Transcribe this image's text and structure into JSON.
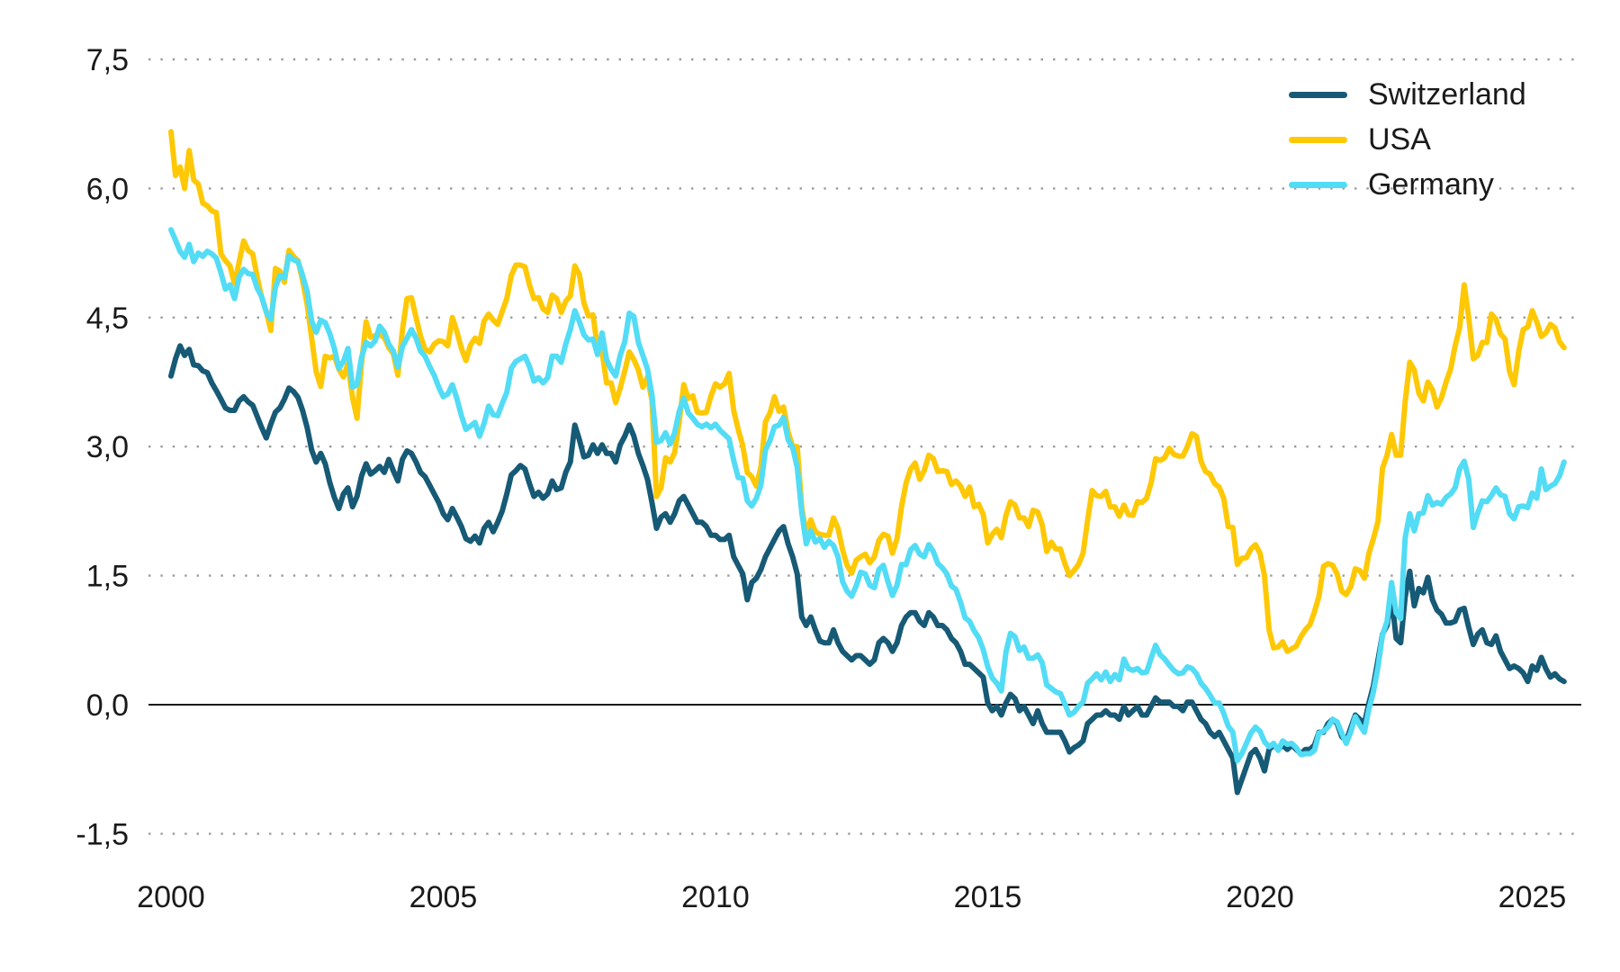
{
  "chart_data": {
    "type": "line",
    "title": "",
    "xlabel": "",
    "ylabel": "",
    "x_start_year": 2000,
    "points_per_year": 12,
    "xlim_years": [
      2000,
      2025.6
    ],
    "ylim": [
      -1.5,
      7.5
    ],
    "grid": "dotted-horizontal",
    "zero_line": true,
    "legend_position": "top-right",
    "x_ticks": [
      "2000",
      "2005",
      "2010",
      "2015",
      "2020",
      "2025"
    ],
    "x_tick_years": [
      2000,
      2005,
      2010,
      2015,
      2020,
      2025
    ],
    "y_ticks": [
      {
        "value": 7.5,
        "label": "7,5"
      },
      {
        "value": 6.0,
        "label": "6,0"
      },
      {
        "value": 4.5,
        "label": "4,5"
      },
      {
        "value": 3.0,
        "label": "3,0"
      },
      {
        "value": 1.5,
        "label": "1,5"
      },
      {
        "value": 0.0,
        "label": "0,0"
      },
      {
        "value": -1.5,
        "label": "-1,5"
      }
    ],
    "colors": {
      "switzerland": "#165A76",
      "usa": "#FFC805",
      "germany": "#52DCF5",
      "grid": "#9a9a9a",
      "zero_line": "#1a1a1a",
      "text": "#1a1a1a"
    },
    "series": [
      {
        "name": "Switzerland",
        "color": "#165A76",
        "values": [
          3.82,
          4.02,
          4.17,
          4.06,
          4.13,
          3.95,
          3.94,
          3.88,
          3.86,
          3.74,
          3.65,
          3.55,
          3.45,
          3.42,
          3.42,
          3.53,
          3.58,
          3.52,
          3.48,
          3.35,
          3.22,
          3.1,
          3.26,
          3.4,
          3.45,
          3.55,
          3.68,
          3.64,
          3.57,
          3.42,
          3.22,
          2.96,
          2.82,
          2.92,
          2.8,
          2.58,
          2.41,
          2.28,
          2.45,
          2.52,
          2.3,
          2.42,
          2.66,
          2.8,
          2.68,
          2.72,
          2.77,
          2.7,
          2.85,
          2.72,
          2.6,
          2.85,
          2.95,
          2.92,
          2.82,
          2.7,
          2.65,
          2.55,
          2.45,
          2.35,
          2.22,
          2.15,
          2.28,
          2.18,
          2.07,
          1.93,
          1.9,
          1.96,
          1.88,
          2.05,
          2.12,
          2.01,
          2.12,
          2.25,
          2.45,
          2.67,
          2.72,
          2.78,
          2.74,
          2.57,
          2.42,
          2.47,
          2.4,
          2.45,
          2.6,
          2.5,
          2.52,
          2.7,
          2.82,
          3.25,
          3.08,
          2.88,
          2.9,
          3.02,
          2.92,
          3.02,
          2.92,
          2.92,
          2.82,
          3.02,
          3.12,
          3.25,
          3.12,
          2.92,
          2.78,
          2.62,
          2.35,
          2.05,
          2.18,
          2.22,
          2.12,
          2.22,
          2.37,
          2.42,
          2.32,
          2.22,
          2.12,
          2.12,
          2.07,
          1.97,
          1.97,
          1.92,
          1.92,
          1.97,
          1.72,
          1.62,
          1.52,
          1.22,
          1.42,
          1.47,
          1.57,
          1.72,
          1.82,
          1.92,
          2.02,
          2.07,
          1.87,
          1.72,
          1.52,
          1.02,
          0.92,
          1.02,
          0.87,
          0.74,
          0.72,
          0.72,
          0.87,
          0.72,
          0.62,
          0.57,
          0.52,
          0.57,
          0.57,
          0.52,
          0.47,
          0.52,
          0.72,
          0.77,
          0.72,
          0.62,
          0.72,
          0.92,
          1.02,
          1.07,
          1.07,
          0.97,
          0.92,
          1.07,
          1.02,
          0.92,
          0.92,
          0.87,
          0.77,
          0.72,
          0.62,
          0.47,
          0.47,
          0.42,
          0.37,
          0.32,
          0.02,
          -0.07,
          -0.02,
          -0.12,
          0.02,
          0.12,
          0.07,
          -0.07,
          -0.02,
          -0.12,
          -0.22,
          -0.07,
          -0.22,
          -0.32,
          -0.32,
          -0.32,
          -0.32,
          -0.42,
          -0.55,
          -0.5,
          -0.47,
          -0.42,
          -0.22,
          -0.17,
          -0.12,
          -0.12,
          -0.07,
          -0.12,
          -0.12,
          -0.17,
          -0.02,
          -0.12,
          -0.07,
          -0.02,
          -0.12,
          -0.12,
          -0.02,
          0.08,
          0.03,
          0.03,
          0.03,
          -0.02,
          -0.02,
          -0.07,
          0.03,
          0.03,
          -0.07,
          -0.17,
          -0.22,
          -0.32,
          -0.37,
          -0.32,
          -0.42,
          -0.52,
          -0.62,
          -1.02,
          -0.87,
          -0.72,
          -0.57,
          -0.52,
          -0.62,
          -0.77,
          -0.52,
          -0.47,
          -0.52,
          -0.47,
          -0.52,
          -0.47,
          -0.52,
          -0.57,
          -0.52,
          -0.52,
          -0.47,
          -0.32,
          -0.32,
          -0.22,
          -0.17,
          -0.22,
          -0.37,
          -0.42,
          -0.27,
          -0.12,
          -0.17,
          -0.22,
          0.02,
          0.22,
          0.52,
          0.82,
          0.92,
          1.25,
          0.77,
          0.72,
          1.25,
          1.55,
          1.15,
          1.35,
          1.3,
          1.48,
          1.22,
          1.1,
          1.05,
          0.95,
          0.95,
          0.97,
          1.1,
          1.12,
          0.9,
          0.7,
          0.82,
          0.87,
          0.72,
          0.7,
          0.8,
          0.62,
          0.52,
          0.42,
          0.45,
          0.42,
          0.37,
          0.27,
          0.45,
          0.4,
          0.55,
          0.42,
          0.32,
          0.36,
          0.3,
          0.27
        ]
      },
      {
        "name": "USA",
        "color": "#FFC805",
        "values": [
          6.66,
          6.15,
          6.25,
          6.0,
          6.44,
          6.1,
          6.05,
          5.83,
          5.8,
          5.74,
          5.72,
          5.24,
          5.16,
          5.1,
          4.89,
          5.14,
          5.39,
          5.28,
          5.24,
          4.97,
          4.73,
          4.57,
          4.35,
          5.07,
          5.04,
          4.91,
          5.28,
          5.21,
          5.16,
          4.93,
          4.65,
          4.26,
          3.87,
          3.7,
          4.05,
          4.03,
          4.05,
          3.9,
          3.81,
          3.96,
          3.57,
          3.33,
          3.98,
          4.45,
          4.27,
          4.29,
          4.3,
          4.27,
          4.15,
          4.08,
          3.83,
          4.35,
          4.72,
          4.73,
          4.5,
          4.28,
          4.13,
          4.1,
          4.19,
          4.23,
          4.22,
          4.17,
          4.5,
          4.34,
          4.14,
          4.0,
          4.18,
          4.26,
          4.2,
          4.46,
          4.54,
          4.47,
          4.42,
          4.57,
          4.72,
          4.99,
          5.11,
          5.11,
          5.09,
          4.88,
          4.72,
          4.73,
          4.6,
          4.56,
          4.76,
          4.72,
          4.56,
          4.69,
          4.75,
          5.1,
          5.0,
          4.67,
          4.52,
          4.53,
          4.15,
          4.1,
          3.74,
          3.74,
          3.51,
          3.68,
          3.88,
          4.1,
          4.01,
          3.89,
          3.69,
          3.81,
          3.53,
          2.42,
          2.52,
          2.87,
          2.82,
          2.93,
          3.29,
          3.72,
          3.56,
          3.59,
          3.4,
          3.39,
          3.4,
          3.59,
          3.73,
          3.69,
          3.73,
          3.85,
          3.42,
          3.2,
          3.01,
          2.7,
          2.65,
          2.54,
          2.76,
          3.29,
          3.39,
          3.58,
          3.41,
          3.46,
          3.17,
          3.0,
          3.0,
          2.3,
          1.98,
          2.15,
          2.01,
          1.98,
          1.97,
          1.97,
          2.17,
          2.05,
          1.8,
          1.62,
          1.53,
          1.68,
          1.72,
          1.75,
          1.65,
          1.72,
          1.91,
          1.98,
          1.96,
          1.76,
          1.93,
          2.3,
          2.58,
          2.74,
          2.81,
          2.62,
          2.72,
          2.9,
          2.86,
          2.71,
          2.72,
          2.71,
          2.56,
          2.6,
          2.54,
          2.42,
          2.53,
          2.3,
          2.33,
          2.21,
          1.88,
          1.98,
          2.04,
          1.94,
          2.2,
          2.36,
          2.32,
          2.17,
          2.17,
          2.07,
          2.26,
          2.24,
          2.09,
          1.78,
          1.89,
          1.81,
          1.81,
          1.64,
          1.5,
          1.56,
          1.63,
          1.76,
          2.14,
          2.49,
          2.43,
          2.42,
          2.48,
          2.3,
          2.3,
          2.19,
          2.32,
          2.21,
          2.2,
          2.36,
          2.35,
          2.4,
          2.58,
          2.86,
          2.84,
          2.87,
          2.98,
          2.91,
          2.89,
          2.89,
          3.0,
          3.15,
          3.12,
          2.83,
          2.71,
          2.68,
          2.57,
          2.53,
          2.4,
          2.07,
          2.06,
          1.63,
          1.7,
          1.71,
          1.81,
          1.86,
          1.76,
          1.5,
          0.87,
          0.66,
          0.67,
          0.73,
          0.62,
          0.65,
          0.68,
          0.79,
          0.87,
          0.93,
          1.08,
          1.26,
          1.61,
          1.64,
          1.62,
          1.52,
          1.32,
          1.28,
          1.37,
          1.58,
          1.56,
          1.47,
          1.76,
          1.93,
          2.13,
          2.75,
          2.9,
          3.14,
          2.9,
          2.9,
          3.52,
          3.98,
          3.89,
          3.62,
          3.53,
          3.75,
          3.66,
          3.46,
          3.57,
          3.75,
          3.9,
          4.17,
          4.38,
          4.88,
          4.5,
          4.02,
          4.06,
          4.21,
          4.21,
          4.54,
          4.48,
          4.31,
          4.25,
          3.87,
          3.72,
          4.1,
          4.36,
          4.39,
          4.58,
          4.45,
          4.28,
          4.32,
          4.42,
          4.38,
          4.22,
          4.15
        ]
      },
      {
        "name": "Germany",
        "color": "#52DCF5",
        "values": [
          5.52,
          5.4,
          5.27,
          5.2,
          5.35,
          5.15,
          5.25,
          5.21,
          5.27,
          5.24,
          5.19,
          5.02,
          4.83,
          4.88,
          4.72,
          4.97,
          5.06,
          5.01,
          5.0,
          4.84,
          4.74,
          4.56,
          4.48,
          4.85,
          4.99,
          4.96,
          5.22,
          5.17,
          5.15,
          4.99,
          4.8,
          4.46,
          4.33,
          4.47,
          4.44,
          4.31,
          4.14,
          3.91,
          3.99,
          4.14,
          3.69,
          3.72,
          4.04,
          4.21,
          4.17,
          4.23,
          4.4,
          4.33,
          4.19,
          4.11,
          3.92,
          4.16,
          4.26,
          4.36,
          4.26,
          4.11,
          4.05,
          3.93,
          3.83,
          3.69,
          3.58,
          3.61,
          3.72,
          3.56,
          3.36,
          3.2,
          3.24,
          3.28,
          3.12,
          3.27,
          3.47,
          3.37,
          3.36,
          3.5,
          3.63,
          3.91,
          3.99,
          4.02,
          4.05,
          3.93,
          3.76,
          3.8,
          3.74,
          3.8,
          4.05,
          4.05,
          3.98,
          4.19,
          4.36,
          4.58,
          4.45,
          4.3,
          4.24,
          4.25,
          4.07,
          4.32,
          4.01,
          3.9,
          3.82,
          4.06,
          4.22,
          4.55,
          4.51,
          4.21,
          4.06,
          3.9,
          3.6,
          3.05,
          3.07,
          3.16,
          3.03,
          3.16,
          3.41,
          3.56,
          3.39,
          3.33,
          3.26,
          3.23,
          3.26,
          3.22,
          3.26,
          3.19,
          3.14,
          3.09,
          2.84,
          2.64,
          2.63,
          2.37,
          2.31,
          2.4,
          2.55,
          2.96,
          3.07,
          3.23,
          3.25,
          3.34,
          3.08,
          2.99,
          2.76,
          2.24,
          1.87,
          2.02,
          1.89,
          1.93,
          1.83,
          1.9,
          1.85,
          1.72,
          1.43,
          1.32,
          1.26,
          1.38,
          1.54,
          1.52,
          1.39,
          1.36,
          1.57,
          1.62,
          1.43,
          1.27,
          1.39,
          1.63,
          1.63,
          1.8,
          1.85,
          1.75,
          1.72,
          1.86,
          1.78,
          1.64,
          1.59,
          1.52,
          1.38,
          1.34,
          1.19,
          1.01,
          0.97,
          0.86,
          0.78,
          0.64,
          0.44,
          0.31,
          0.25,
          0.16,
          0.61,
          0.83,
          0.79,
          0.63,
          0.67,
          0.54,
          0.54,
          0.58,
          0.49,
          0.23,
          0.19,
          0.15,
          0.13,
          0.01,
          -0.12,
          -0.09,
          -0.02,
          0.03,
          0.25,
          0.3,
          0.36,
          0.29,
          0.38,
          0.27,
          0.35,
          0.29,
          0.53,
          0.42,
          0.4,
          0.42,
          0.37,
          0.38,
          0.54,
          0.69,
          0.58,
          0.53,
          0.46,
          0.4,
          0.36,
          0.37,
          0.44,
          0.42,
          0.36,
          0.25,
          0.19,
          0.11,
          0.02,
          0.02,
          -0.1,
          -0.25,
          -0.32,
          -0.65,
          -0.57,
          -0.45,
          -0.33,
          -0.26,
          -0.31,
          -0.43,
          -0.49,
          -0.45,
          -0.53,
          -0.42,
          -0.46,
          -0.45,
          -0.5,
          -0.58,
          -0.57,
          -0.57,
          -0.53,
          -0.33,
          -0.31,
          -0.26,
          -0.17,
          -0.2,
          -0.33,
          -0.45,
          -0.32,
          -0.14,
          -0.24,
          -0.32,
          -0.05,
          0.15,
          0.44,
          0.81,
          0.97,
          1.42,
          1.07,
          1.0,
          1.94,
          2.22,
          2.02,
          2.22,
          2.23,
          2.43,
          2.32,
          2.35,
          2.33,
          2.41,
          2.45,
          2.52,
          2.74,
          2.83,
          2.62,
          2.06,
          2.23,
          2.37,
          2.36,
          2.43,
          2.52,
          2.44,
          2.42,
          2.22,
          2.16,
          2.3,
          2.31,
          2.29,
          2.46,
          2.4,
          2.74,
          2.5,
          2.54,
          2.57,
          2.66,
          2.82
        ]
      }
    ]
  }
}
